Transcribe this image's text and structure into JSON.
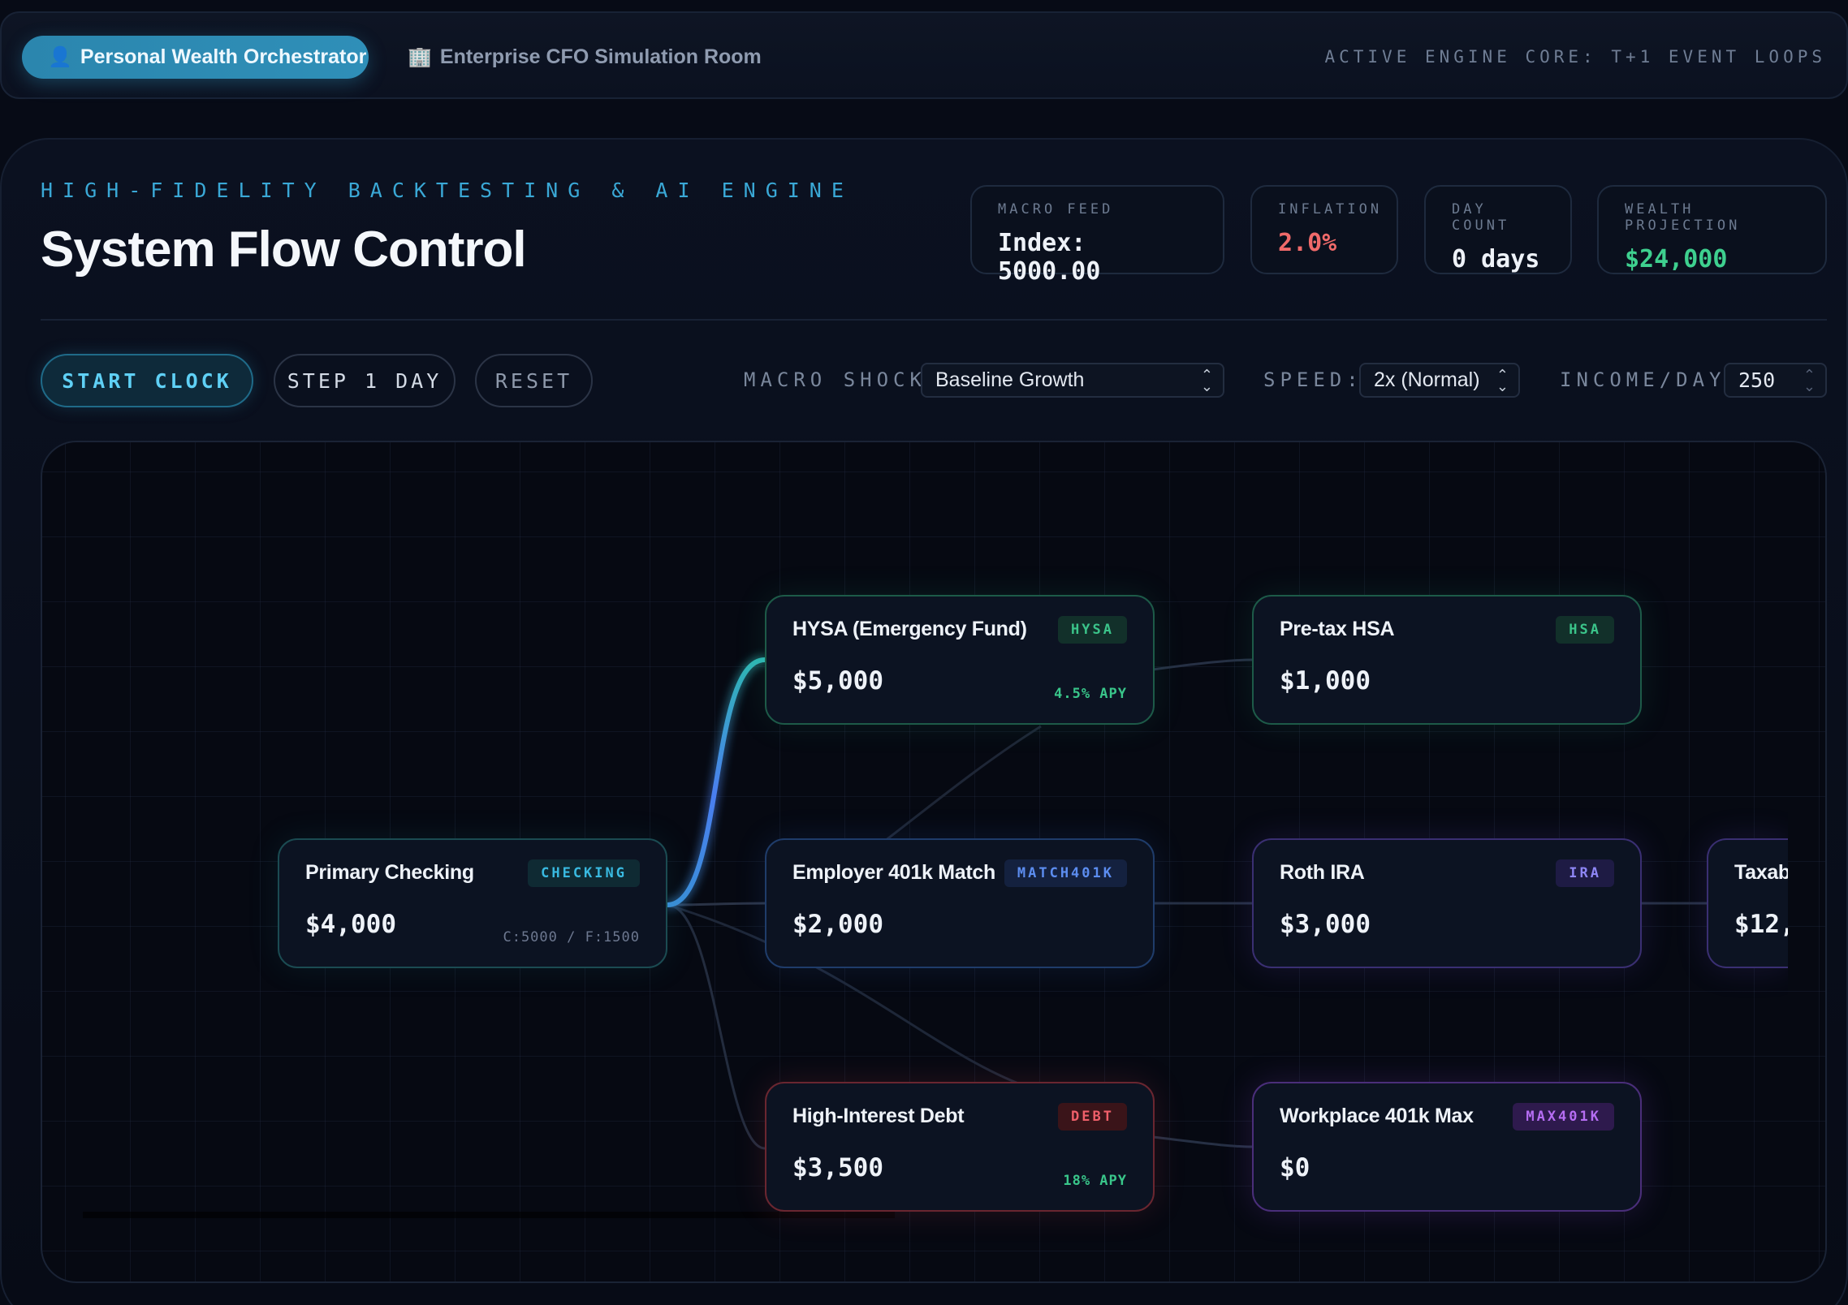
{
  "nav": {
    "tabs": [
      {
        "icon": "person-icon",
        "label": "Personal Wealth Orchestrator",
        "active": true
      },
      {
        "icon": "building-icon",
        "label": "Enterprise CFO Simulation Room",
        "active": false
      }
    ],
    "engine_status": "ACTIVE ENGINE CORE: T+1 EVENT LOOPS"
  },
  "header": {
    "eyebrow": "HIGH-FIDELITY BACKTESTING & AI ENGINE",
    "title": "System Flow Control"
  },
  "stats": [
    {
      "label": "MACRO FEED",
      "value": "Index: 5000.00",
      "color": "#eef2f8"
    },
    {
      "label": "INFLATION",
      "value": "2.0%",
      "color": "#f06a6a"
    },
    {
      "label": "DAY COUNT",
      "value": "0 days",
      "color": "#eef2f8"
    },
    {
      "label": "WEALTH PROJECTION",
      "value": "$24,000",
      "color": "#3ed08f"
    }
  ],
  "controls": {
    "start_label": "START CLOCK",
    "step_label": "STEP 1 DAY",
    "reset_label": "RESET",
    "macro_shock_label": "MACRO SHOCK:",
    "macro_shock_value": "Baseline Growth",
    "speed_label": "SPEED:",
    "speed_value": "2x (Normal)",
    "income_label": "INCOME/DAY:",
    "income_value": "250"
  },
  "nodes": {
    "checking": {
      "name": "Primary Checking",
      "tag": "CHECKING",
      "balance": "$4,000",
      "meta": "C:5000 / F:1500"
    },
    "hysa": {
      "name": "HYSA (Emergency Fund)",
      "tag": "HYSA",
      "balance": "$5,000",
      "meta": "4.5% APY"
    },
    "hsa": {
      "name": "Pre-tax HSA",
      "tag": "HSA",
      "balance": "$1,000"
    },
    "match401k": {
      "name": "Employer 401k Match",
      "tag": "MATCH401K",
      "balance": "$2,000"
    },
    "ira": {
      "name": "Roth IRA",
      "tag": "IRA",
      "balance": "$3,000"
    },
    "taxable": {
      "name": "Taxab",
      "balance": "$12,"
    },
    "debt": {
      "name": "High-Interest Debt",
      "tag": "DEBT",
      "balance": "$3,500",
      "meta": "18% APY"
    },
    "max401k": {
      "name": "Workplace 401k Max",
      "tag": "MAX401K",
      "balance": "$0"
    }
  },
  "colors": {
    "accent": "#2f8fb8",
    "active_flow": "#4a8ff0",
    "background": "#070b16"
  }
}
